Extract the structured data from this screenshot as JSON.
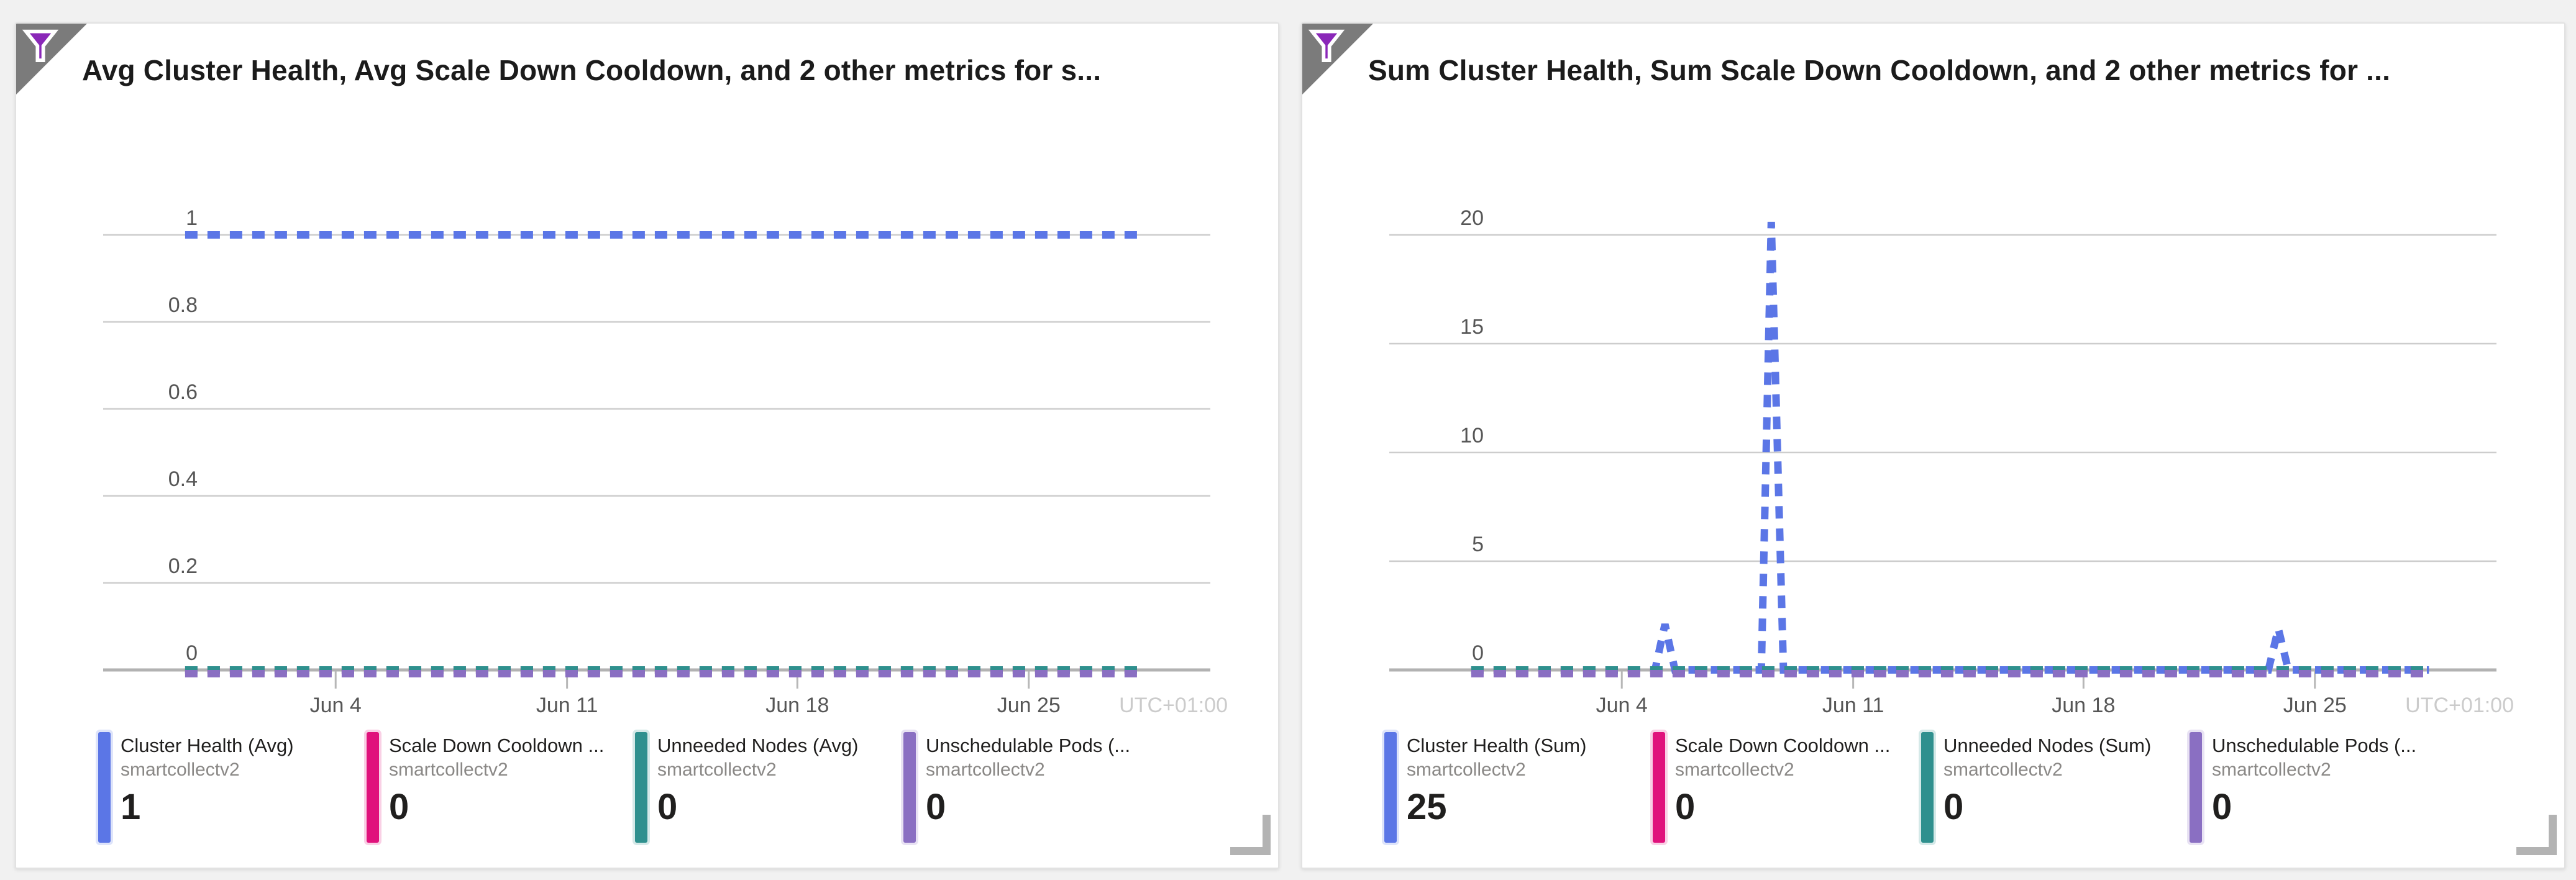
{
  "page": {
    "background_color": "#f1f1f1"
  },
  "icons": {
    "corner_badge": "filter-funnel",
    "funnel_fill": "#8a27b8",
    "corner_gray": "#7b7b7b"
  },
  "style_colors": {
    "gridline": "#cdcdcd",
    "axis_line": "#b2b2b2",
    "tick_mark": "#b7b7b7",
    "tick_text": "#565656",
    "timezone_text": "#cbcbcb"
  },
  "chart_data": [
    {
      "type": "line",
      "line_style": "dashed",
      "title": "Avg Cluster Health, Avg Scale Down Cooldown, and 2 other metrics for s...",
      "timezone": "UTC+01:00",
      "ylim": [
        0,
        1
      ],
      "y_ticks": [
        1,
        0.8,
        0.6,
        0.4,
        0.2,
        0
      ],
      "y_tick_labels": [
        "1",
        "0.8",
        "0.6",
        "0.4",
        "0.2",
        "0"
      ],
      "x_tick_labels": [
        "Jun 4",
        "Jun 11",
        "Jun 18",
        "Jun 25"
      ],
      "x_tick_pos": [
        0.21,
        0.419,
        0.627,
        0.836
      ],
      "grid": true,
      "legend_position": "bottom",
      "series": [
        {
          "name": "Cluster Health (Avg)",
          "resource": "smartcollectv2",
          "color": "#5b76e6",
          "display_value": "1",
          "y_offset": 0,
          "points": [
            [
              0.074,
              1
            ],
            [
              0.939,
              1
            ]
          ]
        },
        {
          "name": "Scale Down Cooldown ...",
          "resource": "smartcollectv2",
          "color": "#e0127c",
          "display_value": "0",
          "y_offset": 0,
          "points": [
            [
              0.074,
              0
            ],
            [
              0.939,
              0
            ]
          ]
        },
        {
          "name": "Unneeded Nodes (Avg)",
          "resource": "smartcollectv2",
          "color": "#2f908e",
          "display_value": "0",
          "y_offset": 0,
          "points": [
            [
              0.074,
              0
            ],
            [
              0.939,
              0
            ]
          ]
        },
        {
          "name": "Unschedulable Pods (...",
          "resource": "smartcollectv2",
          "color": "#8a6fc2",
          "display_value": "0",
          "y_offset": 6,
          "points": [
            [
              0.074,
              0
            ],
            [
              0.939,
              0
            ]
          ]
        }
      ]
    },
    {
      "type": "line",
      "line_style": "dashed",
      "title": "Sum Cluster Health, Sum Scale Down Cooldown, and 2 other metrics for ...",
      "timezone": "UTC+01:00",
      "ylim": [
        0,
        20
      ],
      "y_ticks": [
        20,
        15,
        10,
        5,
        0
      ],
      "y_tick_labels": [
        "20",
        "15",
        "10",
        "5",
        "0"
      ],
      "x_tick_labels": [
        "Jun 4",
        "Jun 11",
        "Jun 18",
        "Jun 25"
      ],
      "x_tick_pos": [
        0.21,
        0.419,
        0.627,
        0.836
      ],
      "grid": true,
      "legend_position": "bottom",
      "series": [
        {
          "name": "Cluster Health (Sum)",
          "resource": "smartcollectv2",
          "color": "#5b76e6",
          "display_value": "25",
          "y_offset": 0,
          "points": [
            [
              0.074,
              0
            ],
            [
              0.24,
              0
            ],
            [
              0.249,
              2.1
            ],
            [
              0.258,
              0
            ],
            [
              0.336,
              0
            ],
            [
              0.345,
              20.6
            ],
            [
              0.356,
              0
            ],
            [
              0.794,
              0
            ],
            [
              0.803,
              1.9
            ],
            [
              0.812,
              0
            ],
            [
              0.939,
              0
            ]
          ]
        },
        {
          "name": "Scale Down Cooldown ...",
          "resource": "smartcollectv2",
          "color": "#e0127c",
          "display_value": "0",
          "y_offset": 0,
          "points": [
            [
              0.074,
              0
            ],
            [
              0.939,
              0
            ]
          ]
        },
        {
          "name": "Unneeded Nodes (Sum)",
          "resource": "smartcollectv2",
          "color": "#2f908e",
          "display_value": "0",
          "y_offset": 0,
          "points": [
            [
              0.074,
              0
            ],
            [
              0.939,
              0
            ]
          ]
        },
        {
          "name": "Unschedulable Pods (...",
          "resource": "smartcollectv2",
          "color": "#8a6fc2",
          "display_value": "0",
          "y_offset": 6,
          "points": [
            [
              0.074,
              0
            ],
            [
              0.939,
              0
            ]
          ]
        }
      ]
    }
  ]
}
